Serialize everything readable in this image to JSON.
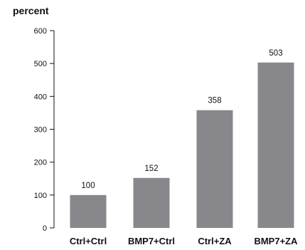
{
  "chart_data": {
    "type": "bar",
    "ylabel": "percent",
    "categories": [
      "Ctrl+Ctrl",
      "BMP7+Ctrl",
      "Ctrl+ZA",
      "BMP7+ZA"
    ],
    "values": [
      100,
      152,
      358,
      503
    ],
    "data_labels": [
      "100",
      "152",
      "358",
      "503"
    ],
    "ylim": [
      0,
      600
    ],
    "yticks": [
      0,
      100,
      200,
      300,
      400,
      500,
      600
    ],
    "grid": false,
    "legend": "none",
    "bar_color": "#87878c"
  }
}
